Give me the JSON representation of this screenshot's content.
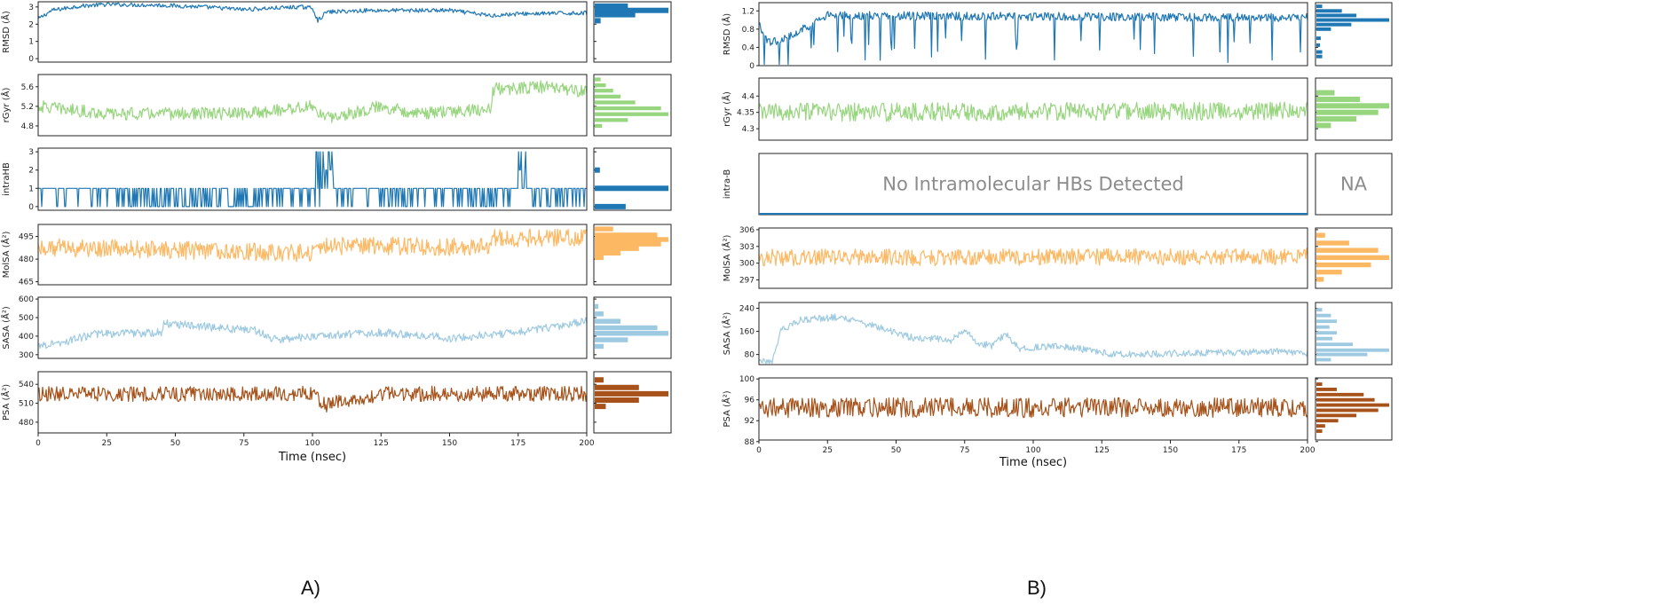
{
  "chart_data": [
    {
      "type": "line",
      "panel_label": "A)",
      "xlabel": "Time (nsec)",
      "xlim": [
        0,
        200
      ],
      "xticks": [
        0,
        25,
        50,
        75,
        100,
        125,
        150,
        175,
        200
      ],
      "subplots": [
        {
          "name": "rmsd",
          "ylabel": "RMSD (Å)",
          "color": "#1f77b4",
          "ylim": [
            -0.2,
            3.3
          ],
          "yticks": [
            0,
            1,
            2,
            3
          ],
          "segments": [
            [
              0,
              2.3
            ],
            [
              5,
              2.8
            ],
            [
              15,
              3.05
            ],
            [
              25,
              3.15
            ],
            [
              45,
              3.1
            ],
            [
              60,
              3.0
            ],
            [
              75,
              2.85
            ],
            [
              95,
              3.0
            ],
            [
              100,
              2.95
            ],
            [
              102,
              2.2
            ],
            [
              105,
              2.7
            ],
            [
              120,
              2.8
            ],
            [
              150,
              2.8
            ],
            [
              165,
              2.5
            ],
            [
              175,
              2.6
            ],
            [
              200,
              2.65
            ]
          ],
          "noise": 0.12,
          "hist": [
            {
              "y": 3.05,
              "w": 0.45
            },
            {
              "y": 2.8,
              "w": 1.0
            },
            {
              "y": 2.55,
              "w": 0.55
            },
            {
              "y": 2.2,
              "w": 0.08
            }
          ]
        },
        {
          "name": "rgyr",
          "ylabel": "rGyr (Å)",
          "color": "#98d57f",
          "ylim": [
            4.6,
            5.85
          ],
          "yticks": [
            4.8,
            5.2,
            5.6
          ],
          "segments": [
            [
              0,
              5.2
            ],
            [
              25,
              5.05
            ],
            [
              50,
              5.05
            ],
            [
              75,
              5.05
            ],
            [
              100,
              5.2
            ],
            [
              105,
              4.95
            ],
            [
              125,
              5.2
            ],
            [
              140,
              5.05
            ],
            [
              165,
              5.15
            ],
            [
              166,
              5.55
            ],
            [
              185,
              5.6
            ],
            [
              200,
              5.5
            ]
          ],
          "noise": 0.13,
          "hist": [
            {
              "y": 5.75,
              "w": 0.08
            },
            {
              "y": 5.63,
              "w": 0.15
            },
            {
              "y": 5.52,
              "w": 0.25
            },
            {
              "y": 5.4,
              "w": 0.35
            },
            {
              "y": 5.28,
              "w": 0.55
            },
            {
              "y": 5.16,
              "w": 0.9
            },
            {
              "y": 5.04,
              "w": 1.0
            },
            {
              "y": 4.92,
              "w": 0.45
            },
            {
              "y": 4.8,
              "w": 0.1
            }
          ]
        },
        {
          "name": "intrahb",
          "ylabel": "intraHB",
          "color": "#1f77b4",
          "ylim": [
            -0.2,
            3.2
          ],
          "yticks": [
            0,
            1,
            2,
            3
          ],
          "discrete": true,
          "segments": [
            [
              0,
              1
            ],
            [
              200,
              1
            ]
          ],
          "noise": 0.0,
          "hist": [
            {
              "y": 2.0,
              "w": 0.07
            },
            {
              "y": 1.0,
              "w": 1.0
            },
            {
              "y": 0.0,
              "w": 0.42
            }
          ]
        },
        {
          "name": "molsa",
          "ylabel": "MolSA (Å²)",
          "color": "#fdb863",
          "ylim": [
            463,
            503
          ],
          "yticks": [
            465,
            480,
            495
          ],
          "segments": [
            [
              0,
              488
            ],
            [
              50,
              486
            ],
            [
              75,
              485
            ],
            [
              100,
              484
            ],
            [
              102,
              489
            ],
            [
              165,
              488
            ],
            [
              166,
              494
            ],
            [
              200,
              494
            ]
          ],
          "noise": 6.0,
          "hist": [
            {
              "y": 500,
              "w": 0.25
            },
            {
              "y": 496,
              "w": 0.85
            },
            {
              "y": 493,
              "w": 1.0
            },
            {
              "y": 490,
              "w": 0.9
            },
            {
              "y": 487,
              "w": 0.6
            },
            {
              "y": 484,
              "w": 0.35
            },
            {
              "y": 481,
              "w": 0.12
            }
          ]
        },
        {
          "name": "sasa",
          "ylabel": "SASA (Å²)",
          "color": "#9ecae1",
          "ylim": [
            280,
            610
          ],
          "yticks": [
            300,
            400,
            500,
            600
          ],
          "segments": [
            [
              0,
              350
            ],
            [
              10,
              370
            ],
            [
              20,
              410
            ],
            [
              45,
              420
            ],
            [
              46,
              470
            ],
            [
              70,
              440
            ],
            [
              80,
              430
            ],
            [
              85,
              380
            ],
            [
              100,
              400
            ],
            [
              125,
              420
            ],
            [
              150,
              390
            ],
            [
              175,
              420
            ],
            [
              200,
              480
            ]
          ],
          "noise": 22.0,
          "hist": [
            {
              "y": 560,
              "w": 0.05
            },
            {
              "y": 520,
              "w": 0.12
            },
            {
              "y": 480,
              "w": 0.35
            },
            {
              "y": 445,
              "w": 0.85
            },
            {
              "y": 415,
              "w": 1.0
            },
            {
              "y": 380,
              "w": 0.45
            },
            {
              "y": 345,
              "w": 0.12
            }
          ]
        },
        {
          "name": "psa",
          "ylabel": "PSA (Å²)",
          "color": "#a6521a",
          "ylim": [
            463,
            560
          ],
          "yticks": [
            480,
            510,
            540
          ],
          "segments": [
            [
              0,
              525
            ],
            [
              100,
              525
            ],
            [
              105,
              508
            ],
            [
              115,
              515
            ],
            [
              125,
              525
            ],
            [
              200,
              525
            ]
          ],
          "noise": 12.0,
          "hist": [
            {
              "y": 547,
              "w": 0.12
            },
            {
              "y": 535,
              "w": 0.6
            },
            {
              "y": 525,
              "w": 1.0
            },
            {
              "y": 515,
              "w": 0.6
            },
            {
              "y": 505,
              "w": 0.15
            }
          ]
        }
      ]
    },
    {
      "type": "line",
      "panel_label": "B)",
      "xlabel": "Time (nsec)",
      "xlim": [
        0,
        200
      ],
      "xticks": [
        0,
        25,
        50,
        75,
        100,
        125,
        150,
        175,
        200
      ],
      "subplots": [
        {
          "name": "rmsd",
          "ylabel": "RMSD (Å)",
          "color": "#1f77b4",
          "ylim": [
            0.0,
            1.38
          ],
          "yticks": [
            0.0,
            0.4,
            0.8,
            1.2
          ],
          "segments": [
            [
              0,
              0.9
            ],
            [
              3,
              0.5
            ],
            [
              10,
              0.6
            ],
            [
              25,
              1.1
            ],
            [
              200,
              1.05
            ]
          ],
          "noise": 0.09,
          "dips": 0.22,
          "hist": [
            {
              "y": 1.3,
              "w": 0.08
            },
            {
              "y": 1.2,
              "w": 0.35
            },
            {
              "y": 1.1,
              "w": 0.55
            },
            {
              "y": 1.0,
              "w": 1.0
            },
            {
              "y": 0.9,
              "w": 0.48
            },
            {
              "y": 0.8,
              "w": 0.2
            },
            {
              "y": 0.6,
              "w": 0.06
            },
            {
              "y": 0.45,
              "w": 0.05
            },
            {
              "y": 0.3,
              "w": 0.08
            },
            {
              "y": 0.2,
              "w": 0.08
            }
          ]
        },
        {
          "name": "rgyr",
          "ylabel": "rGyr (Å)",
          "color": "#98d57f",
          "ylim": [
            4.265,
            4.455
          ],
          "yticks": [
            4.3,
            4.35,
            4.4
          ],
          "segments": [
            [
              0,
              4.35
            ],
            [
              200,
              4.355
            ]
          ],
          "noise": 0.028,
          "hist": [
            {
              "y": 4.41,
              "w": 0.25
            },
            {
              "y": 4.39,
              "w": 0.6
            },
            {
              "y": 4.37,
              "w": 1.0
            },
            {
              "y": 4.35,
              "w": 0.85
            },
            {
              "y": 4.33,
              "w": 0.55
            },
            {
              "y": 4.31,
              "w": 0.2
            }
          ]
        },
        {
          "name": "intrahb",
          "ylabel": "intra-B",
          "empty": true,
          "message": "No Intramolecular HBs Detected",
          "hist_message": "NA"
        },
        {
          "name": "molsa",
          "ylabel": "MolSA (Å²)",
          "color": "#fdb863",
          "ylim": [
            295.5,
            306.3
          ],
          "yticks": [
            297,
            300,
            303,
            306
          ],
          "segments": [
            [
              0,
              301
            ],
            [
              200,
              301.2
            ]
          ],
          "noise": 1.5,
          "hist": [
            {
              "y": 305,
              "w": 0.12
            },
            {
              "y": 303.6,
              "w": 0.45
            },
            {
              "y": 302.3,
              "w": 0.85
            },
            {
              "y": 301,
              "w": 1.0
            },
            {
              "y": 299.7,
              "w": 0.75
            },
            {
              "y": 298.4,
              "w": 0.35
            },
            {
              "y": 297.1,
              "w": 0.1
            }
          ]
        },
        {
          "name": "sasa",
          "ylabel": "SASA (Å²)",
          "color": "#9ecae1",
          "ylim": [
            45,
            260
          ],
          "yticks": [
            80,
            160,
            240
          ],
          "segments": [
            [
              0,
              60
            ],
            [
              5,
              60
            ],
            [
              8,
              160
            ],
            [
              15,
              200
            ],
            [
              30,
              210
            ],
            [
              45,
              170
            ],
            [
              55,
              140
            ],
            [
              70,
              130
            ],
            [
              75,
              160
            ],
            [
              80,
              120
            ],
            [
              85,
              110
            ],
            [
              90,
              150
            ],
            [
              95,
              100
            ],
            [
              110,
              110
            ],
            [
              120,
              95
            ],
            [
              130,
              80
            ],
            [
              160,
              85
            ],
            [
              185,
              90
            ],
            [
              200,
              85
            ]
          ],
          "noise": 12.0,
          "hist": [
            {
              "y": 235,
              "w": 0.08
            },
            {
              "y": 215,
              "w": 0.2
            },
            {
              "y": 195,
              "w": 0.28
            },
            {
              "y": 175,
              "w": 0.18
            },
            {
              "y": 155,
              "w": 0.28
            },
            {
              "y": 135,
              "w": 0.22
            },
            {
              "y": 115,
              "w": 0.5
            },
            {
              "y": 95,
              "w": 1.0
            },
            {
              "y": 80,
              "w": 0.7
            },
            {
              "y": 62,
              "w": 0.2
            }
          ]
        },
        {
          "name": "psa",
          "ylabel": "PSA (Å²)",
          "color": "#a6521a",
          "ylim": [
            88.3,
            100.2
          ],
          "yticks": [
            88,
            92,
            96,
            100
          ],
          "segments": [
            [
              0,
              94.5
            ],
            [
              200,
              94.5
            ]
          ],
          "noise": 1.9,
          "hist": [
            {
              "y": 99,
              "w": 0.08
            },
            {
              "y": 98,
              "w": 0.28
            },
            {
              "y": 97,
              "w": 0.65
            },
            {
              "y": 96,
              "w": 0.8
            },
            {
              "y": 95,
              "w": 1.0
            },
            {
              "y": 94,
              "w": 0.85
            },
            {
              "y": 93,
              "w": 0.55
            },
            {
              "y": 92,
              "w": 0.3
            },
            {
              "y": 91,
              "w": 0.12
            },
            {
              "y": 90,
              "w": 0.08
            }
          ]
        }
      ]
    }
  ]
}
